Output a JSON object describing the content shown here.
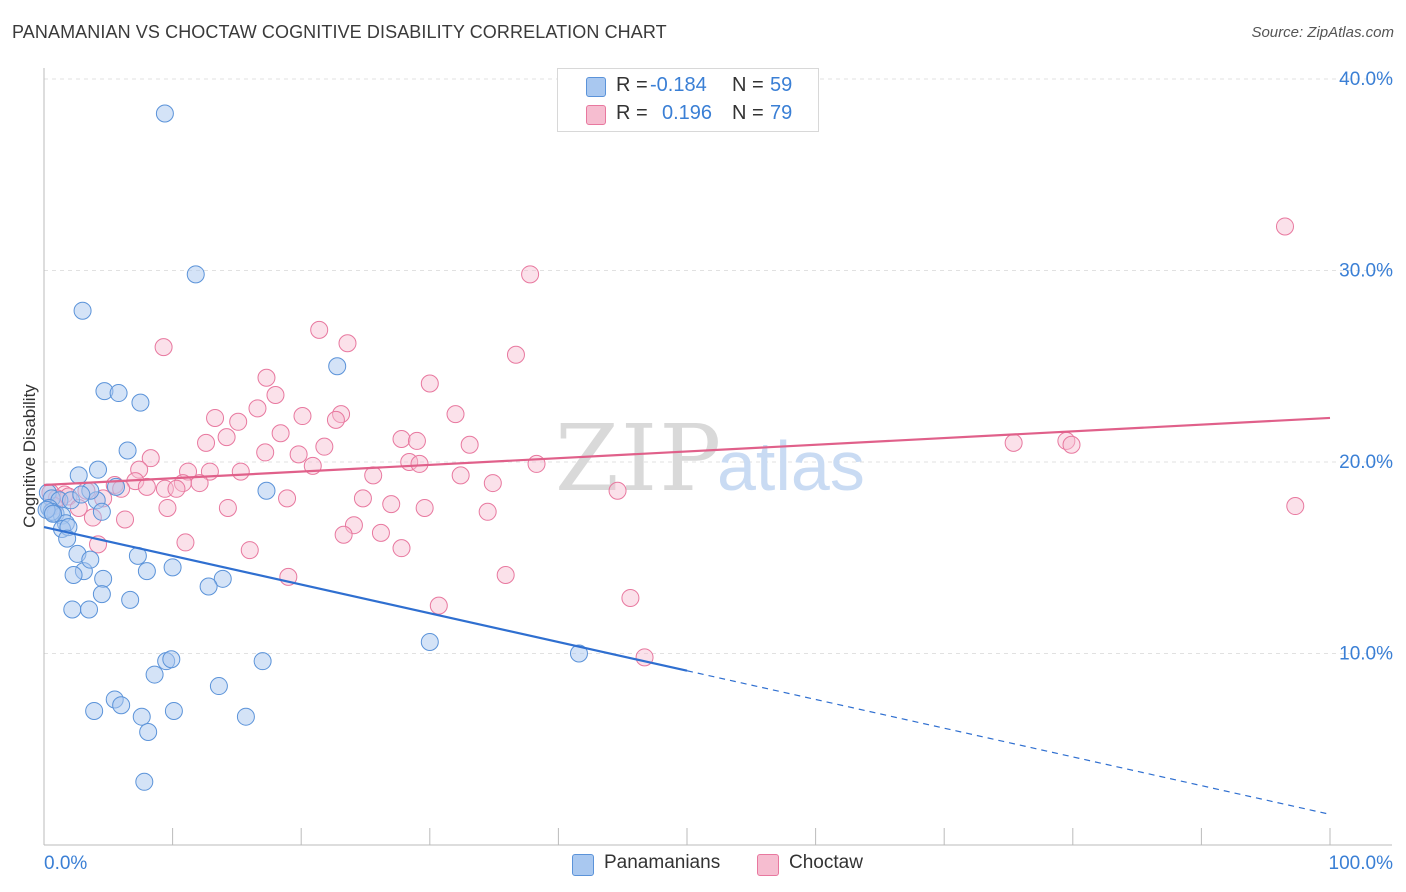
{
  "title": "PANAMANIAN VS CHOCTAW COGNITIVE DISABILITY CORRELATION CHART",
  "source": "Source: ZipAtlas.com",
  "watermark": {
    "zip": "ZIP",
    "atlas": "atlas"
  },
  "legend": {
    "rows": [
      {
        "r_label": "R =",
        "r_value": "-0.184",
        "n_label": "N =",
        "n_value": "59"
      },
      {
        "r_label": "R =",
        "r_value": "0.196",
        "n_label": "N =",
        "n_value": "79"
      }
    ]
  },
  "colors": {
    "blue_fill": "#a9c8f0",
    "blue_stroke": "#5b93d9",
    "blue_line": "#2f6fd0",
    "pink_fill": "#f6bdd0",
    "pink_stroke": "#e8789f",
    "pink_line": "#e0608a",
    "tick_label": "#3a7fd5",
    "grid": "#e1e1e1"
  },
  "chart_data": {
    "type": "scatter",
    "title": "PANAMANIAN VS CHOCTAW COGNITIVE DISABILITY CORRELATION CHART",
    "xlabel": "",
    "ylabel": "Cognitive Disability",
    "xlim": [
      0,
      100
    ],
    "ylim": [
      0,
      40
    ],
    "x_tick_labels": [
      "0.0%",
      "100.0%"
    ],
    "y_ticks": [
      10,
      20,
      30,
      40
    ],
    "y_tick_labels": [
      "10.0%",
      "20.0%",
      "30.0%",
      "40.0%"
    ],
    "grid": true,
    "legend_position": "top-center",
    "series": [
      {
        "name": "Panamanians",
        "r": -0.184,
        "n": 59,
        "trend": {
          "x0": 0,
          "y0": 16.6,
          "x1": 50,
          "y1": 9.1,
          "dashed_to_x": 100,
          "dashed_to_y": 1.6
        },
        "points": [
          [
            9.4,
            38.2
          ],
          [
            11.8,
            29.8
          ],
          [
            3.0,
            27.9
          ],
          [
            22.8,
            25.0
          ],
          [
            4.7,
            23.7
          ],
          [
            5.8,
            23.6
          ],
          [
            7.5,
            23.1
          ],
          [
            6.5,
            20.6
          ],
          [
            4.2,
            19.6
          ],
          [
            2.7,
            19.3
          ],
          [
            0.3,
            18.4
          ],
          [
            0.6,
            18.1
          ],
          [
            1.2,
            18.0
          ],
          [
            0.4,
            17.6
          ],
          [
            0.9,
            17.3
          ],
          [
            1.4,
            17.2
          ],
          [
            0.6,
            17.4
          ],
          [
            2.1,
            18.0
          ],
          [
            4.1,
            18.0
          ],
          [
            3.6,
            18.5
          ],
          [
            4.5,
            17.4
          ],
          [
            1.7,
            16.8
          ],
          [
            1.4,
            16.5
          ],
          [
            1.9,
            16.6
          ],
          [
            1.8,
            16.0
          ],
          [
            5.6,
            18.7
          ],
          [
            0.2,
            17.5
          ],
          [
            0.7,
            17.3
          ],
          [
            17.3,
            18.5
          ],
          [
            2.6,
            15.2
          ],
          [
            7.3,
            15.1
          ],
          [
            3.1,
            14.3
          ],
          [
            3.6,
            14.9
          ],
          [
            8.0,
            14.3
          ],
          [
            10.0,
            14.5
          ],
          [
            2.3,
            14.1
          ],
          [
            4.6,
            13.9
          ],
          [
            13.9,
            13.9
          ],
          [
            12.8,
            13.5
          ],
          [
            4.5,
            13.1
          ],
          [
            6.7,
            12.8
          ],
          [
            2.2,
            12.3
          ],
          [
            3.5,
            12.3
          ],
          [
            30.0,
            10.6
          ],
          [
            41.6,
            10.0
          ],
          [
            9.5,
            9.6
          ],
          [
            9.9,
            9.7
          ],
          [
            17.0,
            9.6
          ],
          [
            8.6,
            8.9
          ],
          [
            13.6,
            8.3
          ],
          [
            5.5,
            7.6
          ],
          [
            6.0,
            7.3
          ],
          [
            3.9,
            7.0
          ],
          [
            10.1,
            7.0
          ],
          [
            7.6,
            6.7
          ],
          [
            15.7,
            6.7
          ],
          [
            8.1,
            5.9
          ],
          [
            7.8,
            3.3
          ],
          [
            2.9,
            18.3
          ]
        ]
      },
      {
        "name": "Choctaw",
        "r": 0.196,
        "n": 79,
        "trend": {
          "x0": 0,
          "y0": 18.8,
          "x1": 100,
          "y1": 22.3
        },
        "points": [
          [
            96.5,
            32.3
          ],
          [
            37.8,
            29.8
          ],
          [
            21.4,
            26.9
          ],
          [
            9.3,
            26.0
          ],
          [
            23.6,
            26.2
          ],
          [
            36.7,
            25.6
          ],
          [
            17.3,
            24.4
          ],
          [
            30.0,
            24.1
          ],
          [
            18.0,
            23.5
          ],
          [
            16.6,
            22.8
          ],
          [
            23.1,
            22.5
          ],
          [
            22.7,
            22.2
          ],
          [
            20.1,
            22.4
          ],
          [
            32.0,
            22.5
          ],
          [
            13.3,
            22.3
          ],
          [
            15.1,
            22.1
          ],
          [
            18.4,
            21.5
          ],
          [
            14.2,
            21.3
          ],
          [
            12.6,
            21.0
          ],
          [
            27.8,
            21.2
          ],
          [
            29.0,
            21.1
          ],
          [
            33.1,
            20.9
          ],
          [
            21.8,
            20.8
          ],
          [
            75.4,
            21.0
          ],
          [
            79.5,
            21.1
          ],
          [
            79.9,
            20.9
          ],
          [
            17.2,
            20.5
          ],
          [
            19.8,
            20.4
          ],
          [
            8.3,
            20.2
          ],
          [
            28.4,
            20.0
          ],
          [
            29.2,
            19.9
          ],
          [
            20.9,
            19.8
          ],
          [
            38.3,
            19.9
          ],
          [
            7.4,
            19.6
          ],
          [
            11.2,
            19.5
          ],
          [
            12.9,
            19.5
          ],
          [
            15.3,
            19.5
          ],
          [
            25.6,
            19.3
          ],
          [
            32.4,
            19.3
          ],
          [
            7.1,
            19.0
          ],
          [
            10.8,
            18.9
          ],
          [
            12.1,
            18.9
          ],
          [
            34.9,
            18.9
          ],
          [
            5.5,
            18.8
          ],
          [
            8.0,
            18.7
          ],
          [
            6.0,
            18.6
          ],
          [
            9.4,
            18.6
          ],
          [
            10.3,
            18.6
          ],
          [
            3.3,
            18.5
          ],
          [
            44.6,
            18.5
          ],
          [
            0.5,
            18.4
          ],
          [
            1.6,
            18.3
          ],
          [
            1.9,
            18.2
          ],
          [
            1.0,
            18.1
          ],
          [
            4.6,
            18.1
          ],
          [
            18.9,
            18.1
          ],
          [
            24.8,
            18.1
          ],
          [
            27.0,
            17.8
          ],
          [
            0.8,
            17.7
          ],
          [
            9.6,
            17.6
          ],
          [
            14.3,
            17.6
          ],
          [
            29.6,
            17.6
          ],
          [
            97.3,
            17.7
          ],
          [
            2.7,
            17.6
          ],
          [
            3.8,
            17.1
          ],
          [
            6.3,
            17.0
          ],
          [
            34.5,
            17.4
          ],
          [
            24.1,
            16.7
          ],
          [
            23.3,
            16.2
          ],
          [
            26.2,
            16.3
          ],
          [
            11.0,
            15.8
          ],
          [
            4.2,
            15.7
          ],
          [
            16.0,
            15.4
          ],
          [
            27.8,
            15.5
          ],
          [
            35.9,
            14.1
          ],
          [
            19.0,
            14.0
          ],
          [
            45.6,
            12.9
          ],
          [
            30.7,
            12.5
          ],
          [
            46.7,
            9.8
          ]
        ]
      }
    ]
  }
}
